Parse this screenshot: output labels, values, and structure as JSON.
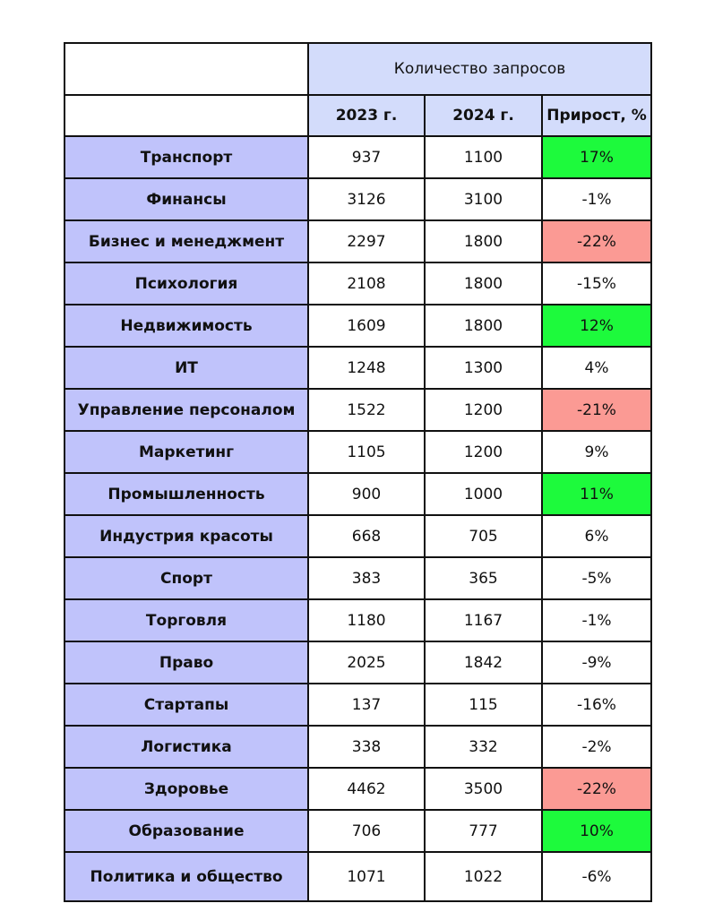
{
  "table": {
    "group_header": "Количество запросов",
    "columns": [
      "2023 г.",
      "2024 г.",
      "Прирост, %"
    ],
    "rows": [
      {
        "category": "Транспорт",
        "y2023": "937",
        "y2024": "1100",
        "growth": "17%",
        "status": "good"
      },
      {
        "category": "Финансы",
        "y2023": "3126",
        "y2024": "3100",
        "growth": "-1%",
        "status": "neutral"
      },
      {
        "category": "Бизнес и менеджмент",
        "y2023": "2297",
        "y2024": "1800",
        "growth": "-22%",
        "status": "bad"
      },
      {
        "category": "Психология",
        "y2023": "2108",
        "y2024": "1800",
        "growth": "-15%",
        "status": "neutral"
      },
      {
        "category": "Недвижимость",
        "y2023": "1609",
        "y2024": "1800",
        "growth": "12%",
        "status": "good"
      },
      {
        "category": "ИТ",
        "y2023": "1248",
        "y2024": "1300",
        "growth": "4%",
        "status": "neutral"
      },
      {
        "category": "Управление персоналом",
        "y2023": "1522",
        "y2024": "1200",
        "growth": "-21%",
        "status": "bad"
      },
      {
        "category": "Маркетинг",
        "y2023": "1105",
        "y2024": "1200",
        "growth": "9%",
        "status": "neutral"
      },
      {
        "category": "Промышленность",
        "y2023": "900",
        "y2024": "1000",
        "growth": "11%",
        "status": "good"
      },
      {
        "category": "Индустрия красоты",
        "y2023": "668",
        "y2024": "705",
        "growth": "6%",
        "status": "neutral"
      },
      {
        "category": "Спорт",
        "y2023": "383",
        "y2024": "365",
        "growth": "-5%",
        "status": "neutral"
      },
      {
        "category": "Торговля",
        "y2023": "1180",
        "y2024": "1167",
        "growth": "-1%",
        "status": "neutral"
      },
      {
        "category": "Право",
        "y2023": "2025",
        "y2024": "1842",
        "growth": "-9%",
        "status": "neutral"
      },
      {
        "category": "Стартапы",
        "y2023": "137",
        "y2024": "115",
        "growth": "-16%",
        "status": "neutral"
      },
      {
        "category": "Логистика",
        "y2023": "338",
        "y2024": "332",
        "growth": "-2%",
        "status": "neutral"
      },
      {
        "category": "Здоровье",
        "y2023": "4462",
        "y2024": "3500",
        "growth": "-22%",
        "status": "bad"
      },
      {
        "category": "Образование",
        "y2023": "706",
        "y2024": "777",
        "growth": "10%",
        "status": "good"
      },
      {
        "category": "Политика и общество",
        "y2023": "1071",
        "y2024": "1022",
        "growth": "-6%",
        "status": "neutral"
      }
    ]
  },
  "colors": {
    "header_fill": "#d3dcfb",
    "category_fill": "#c0c3fb",
    "growth_positive": "#1dfa3c",
    "growth_negative": "#fb9a94"
  }
}
